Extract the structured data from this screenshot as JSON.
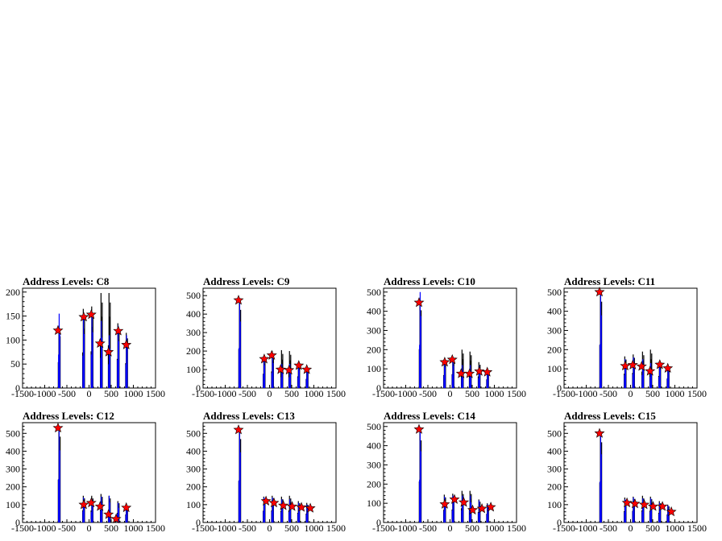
{
  "chart_data": [
    {
      "type": "bar",
      "title": "Address Levels: C8",
      "xlim": [
        -1500,
        1500
      ],
      "ylim": [
        0,
        208
      ],
      "xticks": [
        -1500,
        -1000,
        -500,
        0,
        500,
        1000,
        1500
      ],
      "xtick_labels": [
        "-1500",
        "-1000",
        "-500",
        "0",
        "500",
        "1000",
        "1500"
      ],
      "yticks": [
        0,
        50,
        100,
        150,
        200
      ],
      "ytick_labels": [
        "0",
        "50",
        "100",
        "150",
        "200"
      ],
      "series": [
        {
          "color": "#000000",
          "x": [
            -680,
            -130,
            60,
            270,
            450,
            650,
            840
          ],
          "y": [
            120,
            165,
            170,
            198,
            198,
            135,
            115
          ]
        },
        {
          "color": "#0000ff",
          "x": [
            -680,
            -130,
            60,
            270,
            450,
            650,
            840
          ],
          "y": [
            155,
            150,
            155,
            140,
            110,
            130,
            110
          ]
        }
      ],
      "markers": {
        "color": "#ff0000",
        "x": [
          -700,
          -120,
          50,
          250,
          440,
          660,
          840
        ],
        "y": [
          120,
          148,
          153,
          93,
          75,
          119,
          90
        ]
      }
    },
    {
      "type": "bar",
      "title": "Address Levels: C9",
      "xlim": [
        -1500,
        1500
      ],
      "ylim": [
        0,
        540
      ],
      "xticks": [
        -1500,
        -1000,
        -500,
        0,
        500,
        1000,
        1500
      ],
      "xtick_labels": [
        "-1500",
        "-1000",
        "-500",
        "0",
        "500",
        "1000",
        "1500"
      ],
      "yticks": [
        0,
        100,
        200,
        300,
        400,
        500
      ],
      "ytick_labels": [
        "0",
        "100",
        "200",
        "300",
        "400",
        "500"
      ],
      "series": [
        {
          "color": "#000000",
          "x": [
            -680,
            -130,
            60,
            270,
            450,
            650,
            840
          ],
          "y": [
            470,
            170,
            200,
            205,
            200,
            140,
            110
          ]
        },
        {
          "color": "#0000ff",
          "x": [
            -680,
            -130,
            60,
            270,
            450,
            650,
            840
          ],
          "y": [
            480,
            165,
            180,
            130,
            130,
            130,
            110
          ]
        }
      ],
      "markers": {
        "color": "#ff0000",
        "x": [
          -700,
          -120,
          50,
          250,
          440,
          660,
          840
        ],
        "y": [
          475,
          157,
          177,
          100,
          97,
          122,
          100
        ]
      }
    },
    {
      "type": "bar",
      "title": "Address Levels: C10",
      "xlim": [
        -1500,
        1500
      ],
      "ylim": [
        0,
        520
      ],
      "xticks": [
        -1500,
        -1000,
        -500,
        0,
        500,
        1000,
        1500
      ],
      "xtick_labels": [
        "-1500",
        "-1000",
        "-500",
        "0",
        "500",
        "1000",
        "1500"
      ],
      "yticks": [
        0,
        100,
        200,
        300,
        400,
        500
      ],
      "ytick_labels": [
        "0",
        "100",
        "200",
        "300",
        "400",
        "500"
      ],
      "series": [
        {
          "color": "#000000",
          "x": [
            -680,
            -130,
            60,
            270,
            450,
            650,
            840
          ],
          "y": [
            450,
            150,
            160,
            200,
            190,
            135,
            100
          ]
        },
        {
          "color": "#0000ff",
          "x": [
            -680,
            -130,
            60,
            270,
            450,
            650,
            840
          ],
          "y": [
            500,
            145,
            155,
            120,
            120,
            115,
            95
          ]
        }
      ],
      "markers": {
        "color": "#ff0000",
        "x": [
          -700,
          -120,
          50,
          250,
          440,
          660,
          840
        ],
        "y": [
          445,
          135,
          148,
          75,
          75,
          87,
          83
        ]
      }
    },
    {
      "type": "bar",
      "title": "Address Levels: C11",
      "xlim": [
        -1500,
        1500
      ],
      "ylim": [
        0,
        520
      ],
      "xticks": [
        -1500,
        -1000,
        -500,
        0,
        500,
        1000,
        1500
      ],
      "xtick_labels": [
        "-1500",
        "-1000",
        "-500",
        "0",
        "500",
        "1000",
        "1500"
      ],
      "yticks": [
        0,
        100,
        200,
        300,
        400,
        500
      ],
      "ytick_labels": [
        "0",
        "100",
        "200",
        "300",
        "400",
        "500"
      ],
      "series": [
        {
          "color": "#000000",
          "x": [
            -680,
            -130,
            60,
            270,
            450,
            650,
            840
          ],
          "y": [
            500,
            165,
            175,
            190,
            200,
            140,
            110
          ]
        },
        {
          "color": "#0000ff",
          "x": [
            -680,
            -130,
            60,
            270,
            450,
            650,
            840
          ],
          "y": [
            505,
            150,
            160,
            150,
            130,
            130,
            110
          ]
        }
      ],
      "markers": {
        "color": "#ff0000",
        "x": [
          -700,
          -120,
          50,
          250,
          440,
          660,
          840
        ],
        "y": [
          500,
          115,
          120,
          113,
          88,
          122,
          103
        ]
      }
    },
    {
      "type": "bar",
      "title": "Address Levels: C12",
      "xlim": [
        -1500,
        1500
      ],
      "ylim": [
        0,
        560
      ],
      "xticks": [
        -1500,
        -1000,
        -500,
        0,
        500,
        1000,
        1500
      ],
      "xtick_labels": [
        "-1500",
        "-1000",
        "-500",
        "0",
        "500",
        "1000",
        "1500"
      ],
      "yticks": [
        0,
        100,
        200,
        300,
        400,
        500
      ],
      "ytick_labels": [
        "0",
        "100",
        "200",
        "300",
        "400",
        "500"
      ],
      "series": [
        {
          "color": "#000000",
          "x": [
            -680,
            -130,
            60,
            270,
            450,
            650,
            840
          ],
          "y": [
            535,
            150,
            150,
            160,
            150,
            120,
            100
          ]
        },
        {
          "color": "#0000ff",
          "x": [
            -680,
            -130,
            60,
            270,
            450,
            650,
            840
          ],
          "y": [
            540,
            140,
            130,
            145,
            150,
            110,
            95
          ]
        }
      ],
      "markers": {
        "color": "#ff0000",
        "x": [
          -700,
          -120,
          50,
          250,
          440,
          610,
          840
        ],
        "y": [
          530,
          100,
          110,
          90,
          45,
          20,
          83
        ]
      }
    },
    {
      "type": "bar",
      "title": "Address Levels: C13",
      "xlim": [
        -1500,
        1500
      ],
      "ylim": [
        0,
        560
      ],
      "xticks": [
        -1500,
        -1000,
        -500,
        0,
        500,
        1000,
        1500
      ],
      "xtick_labels": [
        "-1500",
        "-1000",
        "-500",
        "0",
        "500",
        "1000",
        "1500"
      ],
      "yticks": [
        0,
        100,
        200,
        300,
        400,
        500
      ],
      "ytick_labels": [
        "0",
        "100",
        "200",
        "300",
        "400",
        "500"
      ],
      "series": [
        {
          "color": "#000000",
          "x": [
            -680,
            -130,
            60,
            270,
            450,
            650,
            840
          ],
          "y": [
            520,
            145,
            150,
            145,
            150,
            120,
            110
          ]
        },
        {
          "color": "#0000ff",
          "x": [
            -680,
            -130,
            60,
            270,
            450,
            650,
            840
          ],
          "y": [
            525,
            140,
            140,
            130,
            130,
            110,
            100
          ]
        }
      ],
      "markers": {
        "color": "#ff0000",
        "x": [
          -700,
          -80,
          100,
          310,
          510,
          720,
          920
        ],
        "y": [
          520,
          120,
          110,
          95,
          90,
          85,
          80
        ]
      }
    },
    {
      "type": "bar",
      "title": "Address Levels: C14",
      "xlim": [
        -1500,
        1500
      ],
      "ylim": [
        0,
        520
      ],
      "xticks": [
        -1500,
        -1000,
        -500,
        0,
        500,
        1000,
        1500
      ],
      "xtick_labels": [
        "-1500",
        "-1000",
        "-500",
        "0",
        "500",
        "1000",
        "1500"
      ],
      "yticks": [
        0,
        100,
        200,
        300,
        400,
        500
      ],
      "ytick_labels": [
        "0",
        "100",
        "200",
        "300",
        "400",
        "500"
      ],
      "series": [
        {
          "color": "#000000",
          "x": [
            -680,
            -130,
            60,
            270,
            450,
            650,
            840
          ],
          "y": [
            475,
            145,
            150,
            165,
            165,
            120,
            100
          ]
        },
        {
          "color": "#0000ff",
          "x": [
            -680,
            -130,
            60,
            270,
            450,
            650,
            840
          ],
          "y": [
            495,
            135,
            140,
            140,
            140,
            115,
            95
          ]
        }
      ],
      "markers": {
        "color": "#ff0000",
        "x": [
          -700,
          -120,
          100,
          310,
          510,
          720,
          920
        ],
        "y": [
          485,
          95,
          120,
          105,
          65,
          72,
          80
        ]
      }
    },
    {
      "type": "bar",
      "title": "Address Levels: C15",
      "xlim": [
        -1500,
        1500
      ],
      "ylim": [
        0,
        560
      ],
      "xticks": [
        -1500,
        -1000,
        -500,
        0,
        500,
        1000,
        1500
      ],
      "xtick_labels": [
        "-1500",
        "-1000",
        "-500",
        "0",
        "500",
        "1000",
        "1500"
      ],
      "yticks": [
        0,
        100,
        200,
        300,
        400,
        500
      ],
      "ytick_labels": [
        "0",
        "100",
        "200",
        "300",
        "400",
        "500"
      ],
      "series": [
        {
          "color": "#000000",
          "x": [
            -680,
            -130,
            60,
            270,
            450,
            650,
            840
          ],
          "y": [
            500,
            140,
            145,
            150,
            145,
            120,
            100
          ]
        },
        {
          "color": "#0000ff",
          "x": [
            -680,
            -130,
            60,
            270,
            450,
            650,
            840
          ],
          "y": [
            510,
            130,
            140,
            135,
            135,
            110,
            95
          ]
        }
      ],
      "markers": {
        "color": "#ff0000",
        "x": [
          -700,
          -80,
          100,
          310,
          510,
          720,
          920
        ],
        "y": [
          500,
          110,
          105,
          100,
          90,
          90,
          60
        ]
      }
    }
  ]
}
